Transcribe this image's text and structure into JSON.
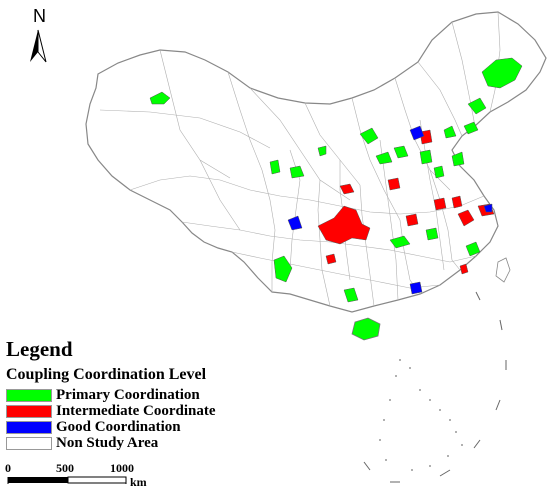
{
  "north": {
    "letter": "N"
  },
  "legend": {
    "title": "Legend",
    "subtitle": "Coupling Coordination Level",
    "items": [
      {
        "label": "Primary Coordination",
        "color": "#00ff00"
      },
      {
        "label": "Intermediate Coordinate",
        "color": "#ff0000"
      },
      {
        "label": "Good Coordination",
        "color": "#0000ff"
      },
      {
        "label": "Non Study Area",
        "color": "#ffffff"
      }
    ]
  },
  "scale_bar": {
    "ticks": [
      "0",
      "500",
      "1000"
    ],
    "unit": "km"
  },
  "colors": {
    "primary": "#00ff00",
    "intermediate": "#ff0000",
    "good": "#0000ff",
    "border": "#8a8a8a"
  }
}
